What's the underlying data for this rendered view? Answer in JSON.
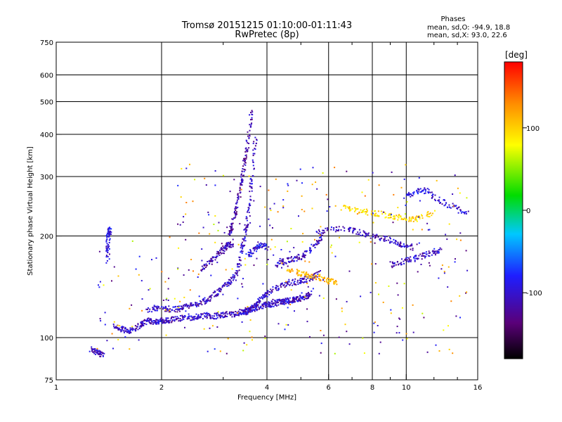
{
  "chart_data": {
    "type": "scatter",
    "title": "Tromsø 20151215 01:10:00-01:11:43",
    "subtitle": "RwPretec (8p)",
    "xlabel": "Frequency [MHz]",
    "ylabel": "Stationary phase Virtual Height [km]",
    "x_scale": "log",
    "y_scale": "log",
    "xlim": [
      1,
      16
    ],
    "ylim": [
      75,
      750
    ],
    "x_ticks": [
      1,
      2,
      4,
      6,
      8,
      10,
      16
    ],
    "x_minor_ticks": [
      3,
      5,
      7,
      9,
      12,
      14
    ],
    "y_ticks": [
      75,
      100,
      200,
      300,
      400,
      500,
      600,
      750
    ],
    "grid": true,
    "info": {
      "heading": "Phases",
      "line1": "mean, sd,O: -94.9, 18.8",
      "line2": "mean, sd,X:  93.0, 22.6"
    },
    "colorbar": {
      "label": "[deg]",
      "range": [
        -180,
        180
      ],
      "ticks": [
        100,
        0,
        -100
      ],
      "colors": [
        "#000000",
        "#5a0078",
        "#1e1eff",
        "#00c8ff",
        "#00dc00",
        "#ffff00",
        "#ff8c00",
        "#ff0000"
      ]
    },
    "series": [
      {
        "type": "trace",
        "f": [
          1.45,
          1.5,
          1.55,
          1.6,
          1.65,
          1.7,
          1.75,
          1.8,
          1.85,
          1.9,
          1.95,
          2.0,
          2.05,
          2.1,
          2.2,
          2.3,
          2.4,
          2.5,
          2.6,
          2.7,
          2.8,
          2.9,
          3.0,
          3.1,
          3.2,
          3.3,
          3.4,
          3.5,
          3.6,
          3.7,
          3.8,
          3.9,
          4.0,
          4.1,
          4.2,
          4.3,
          4.4,
          4.5,
          4.6,
          4.7,
          4.8,
          4.9,
          5.0,
          5.1,
          5.2,
          5.3
        ],
        "h": [
          110,
          107,
          106,
          105,
          106,
          108,
          110,
          112,
          113,
          112,
          112,
          113,
          113,
          113,
          114,
          115,
          115,
          116,
          116,
          117,
          116,
          117,
          117,
          118,
          118,
          119,
          120,
          121,
          122,
          123,
          124,
          125,
          126,
          126,
          127,
          128,
          128,
          129,
          129,
          130,
          130,
          131,
          132,
          133,
          134,
          136
        ],
        "phase": -100
      },
      {
        "type": "trace",
        "f": [
          1.8,
          1.9,
          2.0,
          2.1,
          2.2,
          2.3,
          2.4,
          2.5,
          2.6,
          2.7,
          2.8,
          2.9,
          3.0,
          3.1,
          3.2,
          3.3
        ],
        "h": [
          121,
          123,
          123,
          122,
          122,
          124,
          125,
          126,
          128,
          130,
          134,
          138,
          142,
          147,
          152,
          158
        ],
        "phase": -100
      },
      {
        "type": "trace",
        "f": [
          3.4,
          3.5,
          3.6,
          3.7,
          3.8,
          3.9,
          4.0,
          4.2,
          4.4,
          4.6,
          4.8,
          5.0,
          5.2,
          5.4,
          5.6
        ],
        "h": [
          118,
          120,
          122,
          126,
          130,
          133,
          136,
          140,
          143,
          145,
          147,
          148,
          150,
          152,
          156
        ],
        "phase": -100
      },
      {
        "type": "trace",
        "f": [
          3.0,
          3.1,
          3.15,
          3.2,
          3.25,
          3.3,
          3.35,
          3.4,
          3.45,
          3.5,
          3.55,
          3.6
        ],
        "h": [
          180,
          195,
          210,
          225,
          240,
          260,
          285,
          310,
          340,
          370,
          420,
          470
        ],
        "phase": -110
      },
      {
        "type": "trace",
        "f": [
          3.3,
          3.35,
          3.4,
          3.45,
          3.5,
          3.55,
          3.6,
          3.65,
          3.7
        ],
        "h": [
          160,
          175,
          190,
          205,
          220,
          250,
          290,
          340,
          400
        ],
        "phase": -100
      },
      {
        "type": "trace",
        "f": [
          3.5,
          3.6,
          3.7,
          3.8,
          3.9,
          4.0
        ],
        "h": [
          175,
          180,
          185,
          190,
          188,
          186
        ],
        "phase": -90
      },
      {
        "type": "trace",
        "f": [
          2.6,
          2.7,
          2.8,
          2.9,
          3.0,
          3.1,
          3.2
        ],
        "h": [
          160,
          165,
          172,
          178,
          185,
          190,
          188
        ],
        "phase": -110
      },
      {
        "type": "trace",
        "f": [
          4.2,
          4.4,
          4.6,
          4.8,
          5.0,
          5.2,
          5.4,
          5.6,
          5.8
        ],
        "h": [
          165,
          168,
          170,
          172,
          175,
          180,
          188,
          195,
          205
        ],
        "phase": -100
      },
      {
        "type": "trace",
        "f": [
          5.5,
          6.0,
          6.5,
          7.0,
          7.5,
          8.0,
          8.5,
          9.0,
          9.5,
          10.0,
          10.5
        ],
        "h": [
          205,
          210,
          212,
          208,
          205,
          200,
          198,
          195,
          190,
          188,
          185
        ],
        "phase": -100
      },
      {
        "type": "trace",
        "f": [
          6.5,
          7.0,
          7.5,
          8.0,
          8.5,
          9.0,
          9.5,
          10.0,
          10.5,
          11.0,
          12.0
        ],
        "h": [
          245,
          240,
          238,
          235,
          233,
          230,
          228,
          226,
          225,
          230,
          235
        ],
        "phase": 95
      },
      {
        "type": "trace",
        "f": [
          4.5,
          4.8,
          5.0,
          5.2,
          5.5,
          5.8,
          6.0,
          6.3
        ],
        "h": [
          160,
          158,
          155,
          153,
          152,
          150,
          148,
          146
        ],
        "phase": 110
      },
      {
        "type": "trace",
        "f": [
          1.4,
          1.4,
          1.4,
          1.4,
          1.41,
          1.42
        ],
        "h": [
          170,
          185,
          195,
          205,
          210,
          200
        ],
        "phase": -95
      },
      {
        "type": "trace",
        "f": [
          1.25,
          1.28,
          1.3,
          1.32,
          1.35
        ],
        "h": [
          93,
          92,
          91,
          90,
          90
        ],
        "phase": -100
      },
      {
        "type": "trace",
        "f": [
          9.0,
          9.5,
          10.0,
          10.5,
          11.0,
          11.5,
          12.0,
          12.5
        ],
        "h": [
          165,
          168,
          170,
          172,
          175,
          178,
          180,
          183
        ],
        "phase": -100
      },
      {
        "type": "trace",
        "f": [
          10.0,
          10.5,
          11.0,
          11.5,
          12.0,
          13.0,
          14.0,
          15.0
        ],
        "h": [
          265,
          270,
          275,
          272,
          260,
          250,
          240,
          235
        ],
        "phase": -95
      }
    ]
  }
}
